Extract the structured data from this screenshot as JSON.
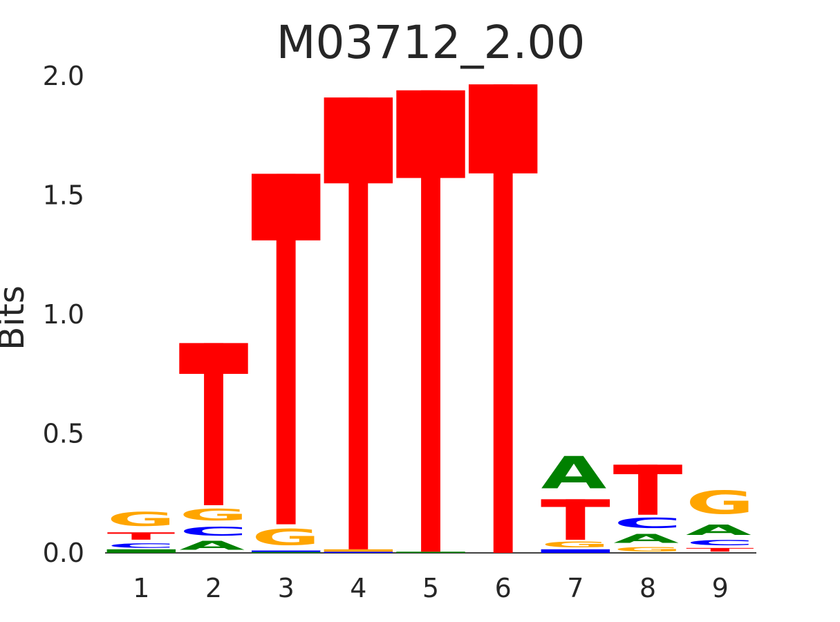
{
  "chart_data": {
    "type": "sequence-logo",
    "title": "M03712_2.00",
    "xlabel": "",
    "ylabel": "Bits",
    "ylim": [
      0,
      2
    ],
    "yticks": [
      "0.0",
      "0.5",
      "1.0",
      "1.5",
      "2.0"
    ],
    "positions": [
      "1",
      "2",
      "3",
      "4",
      "5",
      "6",
      "7",
      "8",
      "9"
    ],
    "colors": {
      "A": "#008000",
      "C": "#0000ff",
      "G": "#ffa500",
      "T": "#ff0000"
    },
    "columns": [
      {
        "position": "1",
        "stack": [
          {
            "base": "A",
            "bits": 0.015
          },
          {
            "base": "C",
            "bits": 0.03
          },
          {
            "base": "T",
            "bits": 0.05
          },
          {
            "base": "G",
            "bits": 0.095
          }
        ]
      },
      {
        "position": "2",
        "stack": [
          {
            "base": "A",
            "bits": 0.06
          },
          {
            "base": "C",
            "bits": 0.06
          },
          {
            "base": "G",
            "bits": 0.08
          },
          {
            "base": "T",
            "bits": 0.68
          }
        ]
      },
      {
        "position": "3",
        "stack": [
          {
            "base": "A",
            "bits": 0.004
          },
          {
            "base": "C",
            "bits": 0.006
          },
          {
            "base": "G",
            "bits": 0.11
          },
          {
            "base": "T",
            "bits": 1.47
          }
        ]
      },
      {
        "position": "4",
        "stack": [
          {
            "base": "C",
            "bits": 0.005
          },
          {
            "base": "G",
            "bits": 0.01
          },
          {
            "base": "T",
            "bits": 1.895
          }
        ]
      },
      {
        "position": "5",
        "stack": [
          {
            "base": "A",
            "bits": 0.005
          },
          {
            "base": "T",
            "bits": 1.935
          }
        ]
      },
      {
        "position": "6",
        "stack": [
          {
            "base": "T",
            "bits": 1.965
          }
        ]
      },
      {
        "position": "7",
        "stack": [
          {
            "base": "C",
            "bits": 0.015
          },
          {
            "base": "G",
            "bits": 0.04
          },
          {
            "base": "T",
            "bits": 0.17
          },
          {
            "base": "A",
            "bits": 0.22
          }
        ]
      },
      {
        "position": "8",
        "stack": [
          {
            "base": "G",
            "bits": 0.03
          },
          {
            "base": "A",
            "bits": 0.06
          },
          {
            "base": "C",
            "bits": 0.07
          },
          {
            "base": "T",
            "bits": 0.21
          }
        ]
      },
      {
        "position": "9",
        "stack": [
          {
            "base": "T",
            "bits": 0.025
          },
          {
            "base": "C",
            "bits": 0.035
          },
          {
            "base": "A",
            "bits": 0.07
          },
          {
            "base": "G",
            "bits": 0.16
          }
        ]
      }
    ]
  }
}
